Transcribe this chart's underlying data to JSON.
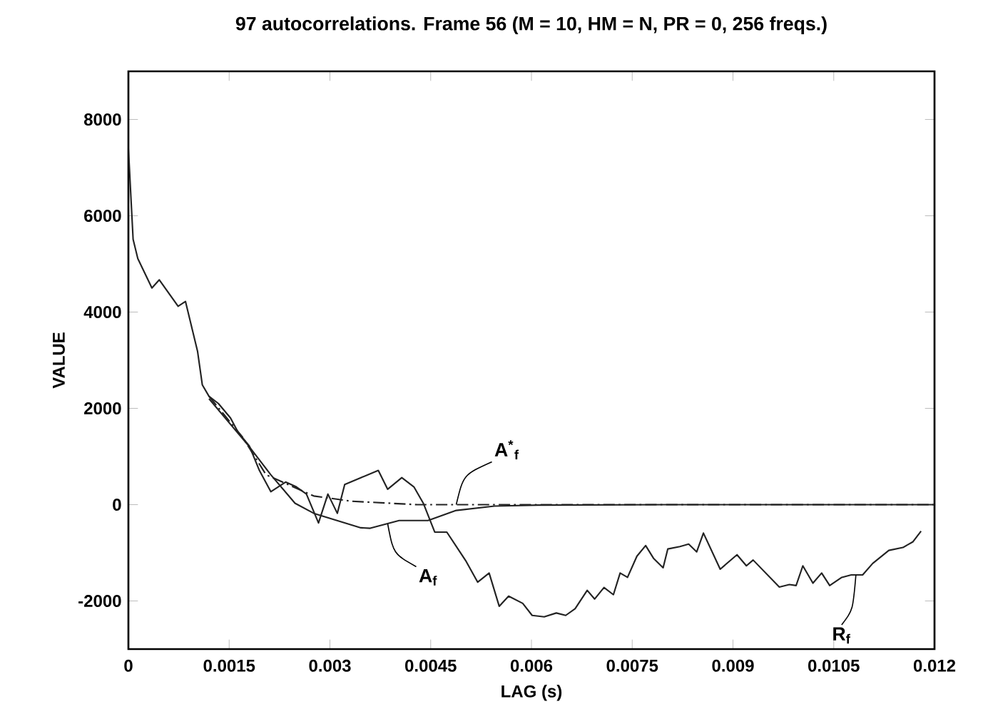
{
  "chart_data": {
    "type": "line",
    "title": "97 autocorrelations. Frame 56 (M = 10, HM = N, PR = 0, 256 freqs.)",
    "xlabel": "LAG (s)",
    "ylabel": "VALUE",
    "xlim": [
      0,
      0.012
    ],
    "ylim": [
      -3000,
      9000
    ],
    "xticks": [
      0,
      0.0015,
      0.003,
      0.0045,
      0.006,
      0.0075,
      0.009,
      0.0105,
      0.012
    ],
    "yticks": [
      -2000,
      0,
      2000,
      4000,
      6000,
      8000
    ],
    "grid": false,
    "marker": "none",
    "series": [
      {
        "color": "#222222",
        "line_style": "solid",
        "x": [
          0,
          7e-05,
          0.00014,
          0.00035,
          0.00046,
          0.00074,
          0.00085,
          0.00103,
          0.0011,
          0.0012,
          0.00134,
          0.00152,
          0.00163,
          0.0018,
          0.00195,
          0.00212,
          0.00234,
          0.0025,
          0.00265,
          0.00283,
          0.00297,
          0.00311,
          0.00322,
          0.00346,
          0.00372,
          0.00386,
          0.00407,
          0.00425,
          0.00439,
          0.00456,
          0.00474,
          0.00502,
          0.0052,
          0.00537,
          0.00552,
          0.00566,
          0.00587,
          0.00601,
          0.00619,
          0.00637,
          0.00651,
          0.00665,
          0.00683,
          0.00694,
          0.00708,
          0.00722,
          0.00732,
          0.00743,
          0.00757,
          0.0077,
          0.00782,
          0.00796,
          0.00803,
          0.00821,
          0.00834,
          0.00846,
          0.00856,
          0.00881,
          0.00906,
          0.0092,
          0.0093,
          0.00969,
          0.00984,
          0.00994,
          0.01004,
          0.01019,
          0.01032,
          0.01044,
          0.01062,
          0.01076,
          0.01093,
          0.01108,
          0.01132,
          0.01153,
          0.01168,
          0.0118
        ],
        "values": [
          7400,
          5510,
          5110,
          4500,
          4670,
          4120,
          4220,
          3180,
          2490,
          2250,
          2100,
          1800,
          1510,
          1220,
          710,
          270,
          470,
          370,
          220,
          -380,
          220,
          -180,
          420,
          560,
          710,
          320,
          560,
          370,
          30,
          -570,
          -570,
          -1160,
          -1610,
          -1420,
          -2110,
          -1900,
          -2050,
          -2300,
          -2330,
          -2250,
          -2300,
          -2160,
          -1780,
          -1960,
          -1720,
          -1870,
          -1420,
          -1510,
          -1070,
          -850,
          -1120,
          -1310,
          -920,
          -870,
          -820,
          -980,
          -590,
          -1340,
          -1040,
          -1270,
          -1150,
          -1710,
          -1660,
          -1680,
          -1270,
          -1630,
          -1420,
          -1680,
          -1510,
          -1460,
          -1460,
          -1220,
          -950,
          -890,
          -770,
          -550
        ]
      },
      {
        "color": "#222222",
        "line_style": "dashed",
        "x": [
          0.0012,
          0.0017,
          0.00205,
          0.00276,
          0.00333,
          0.0043,
          0.006,
          0.008,
          0.01,
          0.012
        ],
        "values": [
          2250,
          1400,
          620,
          180,
          70,
          0,
          0,
          0,
          0,
          0
        ]
      },
      {
        "color": "#222222",
        "line_style": "solid",
        "x": [
          0.0012,
          0.00179,
          0.00212,
          0.00248,
          0.00276,
          0.00311,
          0.00346,
          0.0036,
          0.00403,
          0.00446,
          0.00488,
          0.00545,
          0.0061,
          0.008,
          0.01,
          0.012
        ],
        "values": [
          2200,
          1220,
          620,
          30,
          -180,
          -330,
          -480,
          -490,
          -330,
          -330,
          -120,
          -30,
          -10,
          0,
          0,
          0
        ]
      }
    ],
    "annotations": [
      {
        "text": "A$^{*}$$_{f}$",
        "x": 0.00488,
        "y": 0
      },
      {
        "text": "A$_{f}$",
        "x": 0.00386,
        "y": -400
      },
      {
        "text": "R$_{f}$",
        "x": 0.01083,
        "y": -1460
      }
    ]
  }
}
